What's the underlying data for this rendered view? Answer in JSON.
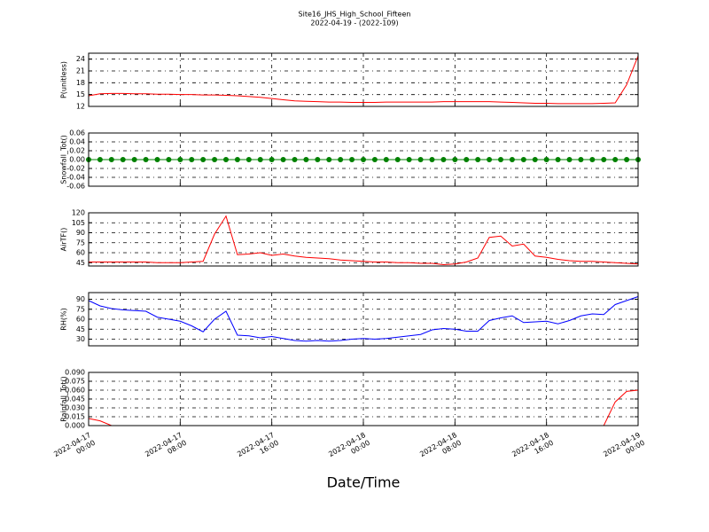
{
  "title": "Site16_JHS_High_School_Fifteen",
  "subtitle": "2022-04-19 - (2022-109)",
  "xlabel": "Date/Time",
  "chart_data": [
    {
      "type": "line",
      "ylabel": "P(unitless)",
      "color": "#ff0000",
      "ylim": [
        12,
        25.5
      ],
      "yticks": [
        12,
        15,
        18,
        21,
        24
      ],
      "grid": true,
      "x": [
        "2022-04-17 00:00",
        "2022-04-17 01:00",
        "2022-04-17 02:00",
        "2022-04-17 03:00",
        "2022-04-17 04:00",
        "2022-04-17 05:00",
        "2022-04-17 06:00",
        "2022-04-17 07:00",
        "2022-04-17 08:00",
        "2022-04-17 09:00",
        "2022-04-17 10:00",
        "2022-04-17 11:00",
        "2022-04-17 12:00",
        "2022-04-17 13:00",
        "2022-04-17 14:00",
        "2022-04-17 15:00",
        "2022-04-17 16:00",
        "2022-04-17 17:00",
        "2022-04-17 18:00",
        "2022-04-17 19:00",
        "2022-04-17 20:00",
        "2022-04-17 21:00",
        "2022-04-17 22:00",
        "2022-04-17 23:00",
        "2022-04-18 00:00",
        "2022-04-18 01:00",
        "2022-04-18 02:00",
        "2022-04-18 03:00",
        "2022-04-18 04:00",
        "2022-04-18 05:00",
        "2022-04-18 06:00",
        "2022-04-18 07:00",
        "2022-04-18 08:00",
        "2022-04-18 09:00",
        "2022-04-18 10:00",
        "2022-04-18 11:00",
        "2022-04-18 12:00",
        "2022-04-18 13:00",
        "2022-04-18 14:00",
        "2022-04-18 15:00",
        "2022-04-18 16:00",
        "2022-04-18 17:00",
        "2022-04-18 18:00",
        "2022-04-18 19:00",
        "2022-04-18 20:00",
        "2022-04-18 21:00",
        "2022-04-18 22:00",
        "2022-04-18 23:00",
        "2022-04-19 00:00"
      ],
      "values": [
        14.7,
        15.2,
        15.3,
        15.3,
        15.2,
        15.2,
        15.1,
        15.1,
        15.0,
        15.0,
        14.9,
        14.9,
        14.8,
        14.7,
        14.5,
        14.3,
        14.0,
        13.7,
        13.4,
        13.3,
        13.2,
        13.1,
        13.1,
        13.0,
        13.0,
        13.0,
        13.1,
        13.1,
        13.1,
        13.1,
        13.1,
        13.2,
        13.2,
        13.2,
        13.2,
        13.2,
        13.1,
        13.0,
        12.9,
        12.8,
        12.8,
        12.7,
        12.7,
        12.7,
        12.7,
        12.8,
        12.9,
        17.5,
        24.8
      ]
    },
    {
      "type": "line",
      "ylabel": "Snowfall_Tot()",
      "color": "#008000",
      "marker": "o",
      "ylim": [
        -0.06,
        0.06
      ],
      "yticks": [
        -0.06,
        -0.04,
        -0.02,
        {
          "value": 0,
          "label": "0.00"
        },
        0.02,
        0.04,
        0.06
      ],
      "grid": true,
      "x": [
        "2022-04-17 00:00",
        "2022-04-17 01:00",
        "2022-04-17 02:00",
        "2022-04-17 03:00",
        "2022-04-17 04:00",
        "2022-04-17 05:00",
        "2022-04-17 06:00",
        "2022-04-17 07:00",
        "2022-04-17 08:00",
        "2022-04-17 09:00",
        "2022-04-17 10:00",
        "2022-04-17 11:00",
        "2022-04-17 12:00",
        "2022-04-17 13:00",
        "2022-04-17 14:00",
        "2022-04-17 15:00",
        "2022-04-17 16:00",
        "2022-04-17 17:00",
        "2022-04-17 18:00",
        "2022-04-17 19:00",
        "2022-04-17 20:00",
        "2022-04-17 21:00",
        "2022-04-17 22:00",
        "2022-04-17 23:00",
        "2022-04-18 00:00",
        "2022-04-18 01:00",
        "2022-04-18 02:00",
        "2022-04-18 03:00",
        "2022-04-18 04:00",
        "2022-04-18 05:00",
        "2022-04-18 06:00",
        "2022-04-18 07:00",
        "2022-04-18 08:00",
        "2022-04-18 09:00",
        "2022-04-18 10:00",
        "2022-04-18 11:00",
        "2022-04-18 12:00",
        "2022-04-18 13:00",
        "2022-04-18 14:00",
        "2022-04-18 15:00",
        "2022-04-18 16:00",
        "2022-04-18 17:00",
        "2022-04-18 18:00",
        "2022-04-18 19:00",
        "2022-04-18 20:00",
        "2022-04-18 21:00",
        "2022-04-18 22:00",
        "2022-04-18 23:00",
        "2022-04-19 00:00"
      ],
      "values": [
        0,
        0,
        0,
        0,
        0,
        0,
        0,
        0,
        0,
        0,
        0,
        0,
        0,
        0,
        0,
        0,
        0,
        0,
        0,
        0,
        0,
        0,
        0,
        0,
        0,
        0,
        0,
        0,
        0,
        0,
        0,
        0,
        0,
        0,
        0,
        0,
        0,
        0,
        0,
        0,
        0,
        0,
        0,
        0,
        0,
        0,
        0,
        0,
        0
      ]
    },
    {
      "type": "line",
      "ylabel": "AirTF()",
      "color": "#ff0000",
      "ylim": [
        40,
        120
      ],
      "yticks": [
        45,
        60,
        75,
        90,
        105,
        120
      ],
      "grid": true,
      "x": [
        "2022-04-17 00:00",
        "2022-04-17 01:00",
        "2022-04-17 02:00",
        "2022-04-17 03:00",
        "2022-04-17 04:00",
        "2022-04-17 05:00",
        "2022-04-17 06:00",
        "2022-04-17 07:00",
        "2022-04-17 08:00",
        "2022-04-17 09:00",
        "2022-04-17 10:00",
        "2022-04-17 11:00",
        "2022-04-17 12:00",
        "2022-04-17 13:00",
        "2022-04-17 14:00",
        "2022-04-17 15:00",
        "2022-04-17 16:00",
        "2022-04-17 17:00",
        "2022-04-17 18:00",
        "2022-04-17 19:00",
        "2022-04-17 20:00",
        "2022-04-17 21:00",
        "2022-04-17 22:00",
        "2022-04-17 23:00",
        "2022-04-18 00:00",
        "2022-04-18 01:00",
        "2022-04-18 02:00",
        "2022-04-18 03:00",
        "2022-04-18 04:00",
        "2022-04-18 05:00",
        "2022-04-18 06:00",
        "2022-04-18 07:00",
        "2022-04-18 08:00",
        "2022-04-18 09:00",
        "2022-04-18 10:00",
        "2022-04-18 11:00",
        "2022-04-18 12:00",
        "2022-04-18 13:00",
        "2022-04-18 14:00",
        "2022-04-18 15:00",
        "2022-04-18 16:00",
        "2022-04-18 17:00",
        "2022-04-18 18:00",
        "2022-04-18 19:00",
        "2022-04-18 20:00",
        "2022-04-18 21:00",
        "2022-04-18 22:00",
        "2022-04-18 23:00",
        "2022-04-19 00:00"
      ],
      "values": [
        46,
        46,
        46,
        46,
        46,
        46,
        45,
        45,
        45,
        46,
        47,
        88,
        115,
        57,
        58,
        60,
        56,
        58,
        55,
        53,
        52,
        51,
        49,
        48,
        47,
        46,
        46,
        45,
        45,
        44,
        44,
        42,
        43,
        46,
        52,
        83,
        85,
        70,
        73,
        55,
        53,
        50,
        48,
        47,
        47,
        46,
        45,
        44,
        43
      ]
    },
    {
      "type": "line",
      "ylabel": "RH(%)",
      "color": "#0000ff",
      "ylim": [
        20,
        100
      ],
      "yticks": [
        30,
        45,
        60,
        75,
        90
      ],
      "grid": true,
      "x": [
        "2022-04-17 00:00",
        "2022-04-17 01:00",
        "2022-04-17 02:00",
        "2022-04-17 03:00",
        "2022-04-17 04:00",
        "2022-04-17 05:00",
        "2022-04-17 06:00",
        "2022-04-17 07:00",
        "2022-04-17 08:00",
        "2022-04-17 09:00",
        "2022-04-17 10:00",
        "2022-04-17 11:00",
        "2022-04-17 12:00",
        "2022-04-17 13:00",
        "2022-04-17 14:00",
        "2022-04-17 15:00",
        "2022-04-17 16:00",
        "2022-04-17 17:00",
        "2022-04-17 18:00",
        "2022-04-17 19:00",
        "2022-04-17 20:00",
        "2022-04-17 21:00",
        "2022-04-17 22:00",
        "2022-04-17 23:00",
        "2022-04-18 00:00",
        "2022-04-18 01:00",
        "2022-04-18 02:00",
        "2022-04-18 03:00",
        "2022-04-18 04:00",
        "2022-04-18 05:00",
        "2022-04-18 06:00",
        "2022-04-18 07:00",
        "2022-04-18 08:00",
        "2022-04-18 09:00",
        "2022-04-18 10:00",
        "2022-04-18 11:00",
        "2022-04-18 12:00",
        "2022-04-18 13:00",
        "2022-04-18 14:00",
        "2022-04-18 15:00",
        "2022-04-18 16:00",
        "2022-04-18 17:00",
        "2022-04-18 18:00",
        "2022-04-18 19:00",
        "2022-04-18 20:00",
        "2022-04-18 21:00",
        "2022-04-18 22:00",
        "2022-04-18 23:00",
        "2022-04-19 00:00"
      ],
      "values": [
        88,
        80,
        76,
        74,
        73,
        72,
        63,
        60,
        57,
        50,
        41,
        60,
        72,
        36,
        35,
        32,
        34,
        31,
        28,
        27,
        28,
        27,
        28,
        30,
        31,
        30,
        31,
        33,
        35,
        37,
        44,
        46,
        45,
        42,
        42,
        58,
        62,
        65,
        55,
        56,
        57,
        53,
        58,
        65,
        68,
        67,
        82,
        88,
        94
      ]
    },
    {
      "type": "line",
      "ylabel": "Rainfall_Tot()",
      "color": "#ff0000",
      "ylim": [
        0,
        0.09
      ],
      "yticks": [
        {
          "value": 0,
          "label": "0.000"
        },
        0.015,
        {
          "value": 0.03,
          "label": "0.030"
        },
        0.045,
        {
          "value": 0.06,
          "label": "0.060"
        },
        0.075,
        {
          "value": 0.09,
          "label": "0.090"
        }
      ],
      "grid": true,
      "xlim": [
        "2022-04-17 00:00",
        "2022-04-19 00:00"
      ],
      "xticks": [
        {
          "value": "2022-04-17 00:00",
          "label": "2022-04-17\n00:00"
        },
        {
          "value": "2022-04-17 08:00",
          "label": "2022-04-17\n08:00"
        },
        {
          "value": "2022-04-17 16:00",
          "label": "2022-04-17\n16:00"
        },
        {
          "value": "2022-04-18 00:00",
          "label": "2022-04-18\n00:00"
        },
        {
          "value": "2022-04-18 08:00",
          "label": "2022-04-18\n08:00"
        },
        {
          "value": "2022-04-18 16:00",
          "label": "2022-04-18\n16:00"
        },
        {
          "value": "2022-04-19 00:00",
          "label": "2022-04-19\n00:00"
        }
      ],
      "x": [
        "2022-04-17 00:00",
        "2022-04-17 01:00",
        "2022-04-17 02:00",
        "2022-04-17 03:00",
        "2022-04-17 04:00",
        "2022-04-17 05:00",
        "2022-04-17 06:00",
        "2022-04-17 07:00",
        "2022-04-17 08:00",
        "2022-04-17 09:00",
        "2022-04-17 10:00",
        "2022-04-17 11:00",
        "2022-04-17 12:00",
        "2022-04-17 13:00",
        "2022-04-17 14:00",
        "2022-04-17 15:00",
        "2022-04-17 16:00",
        "2022-04-17 17:00",
        "2022-04-17 18:00",
        "2022-04-17 19:00",
        "2022-04-17 20:00",
        "2022-04-17 21:00",
        "2022-04-17 22:00",
        "2022-04-17 23:00",
        "2022-04-18 00:00",
        "2022-04-18 01:00",
        "2022-04-18 02:00",
        "2022-04-18 03:00",
        "2022-04-18 04:00",
        "2022-04-18 05:00",
        "2022-04-18 06:00",
        "2022-04-18 07:00",
        "2022-04-18 08:00",
        "2022-04-18 09:00",
        "2022-04-18 10:00",
        "2022-04-18 11:00",
        "2022-04-18 12:00",
        "2022-04-18 13:00",
        "2022-04-18 14:00",
        "2022-04-18 15:00",
        "2022-04-18 16:00",
        "2022-04-18 17:00",
        "2022-04-18 18:00",
        "2022-04-18 19:00",
        "2022-04-18 20:00",
        "2022-04-18 21:00",
        "2022-04-18 22:00",
        "2022-04-18 23:00",
        "2022-04-19 00:00"
      ],
      "values": [
        0.012,
        0.008,
        0,
        0,
        0,
        0,
        0,
        0,
        0,
        0,
        0,
        0,
        0,
        0,
        0,
        0,
        0,
        0,
        0,
        0,
        0,
        0,
        0,
        0,
        0,
        0,
        0,
        0,
        0,
        0,
        0,
        0,
        0,
        0,
        0,
        0,
        0,
        0,
        0,
        0,
        0,
        0,
        0,
        0,
        0,
        0,
        0.04,
        0.058,
        0.06
      ]
    }
  ]
}
